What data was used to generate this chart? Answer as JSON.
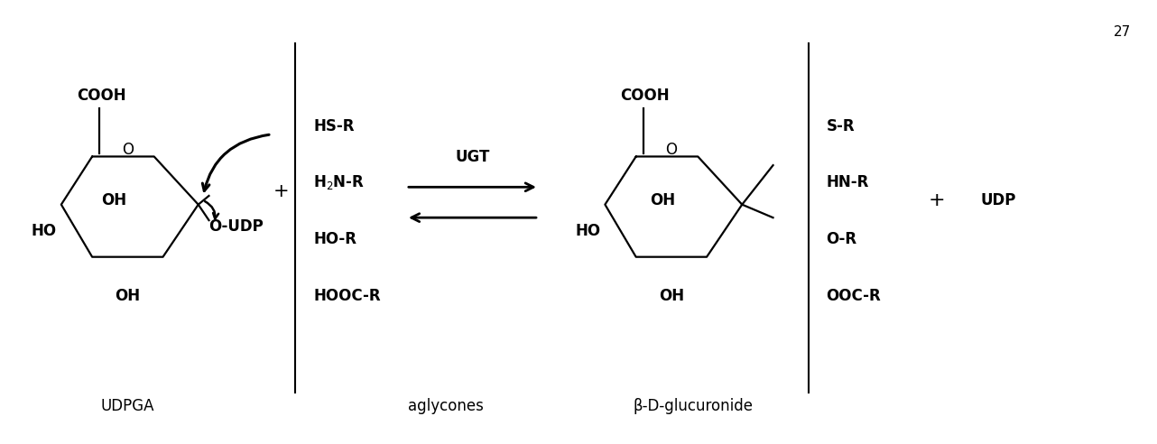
{
  "bg_color": "#ffffff",
  "text_color": "#000000",
  "fig_width": 12.82,
  "fig_height": 4.92,
  "dpi": 100,
  "page_number": "27",
  "udpga_label": "UDPGA",
  "aglycones_label": "aglycones",
  "glucuronide_label": "β-D-glucuronide",
  "ugt_label": "UGT",
  "udp_label": "UDP",
  "aglycones_list": [
    "HS-R",
    "H₂N-R",
    "HO-R",
    "HOOC-R"
  ],
  "products_list": [
    "S-R",
    "HN-R",
    "O-R",
    "OOC-R"
  ],
  "lw": 1.6,
  "fs": 12
}
